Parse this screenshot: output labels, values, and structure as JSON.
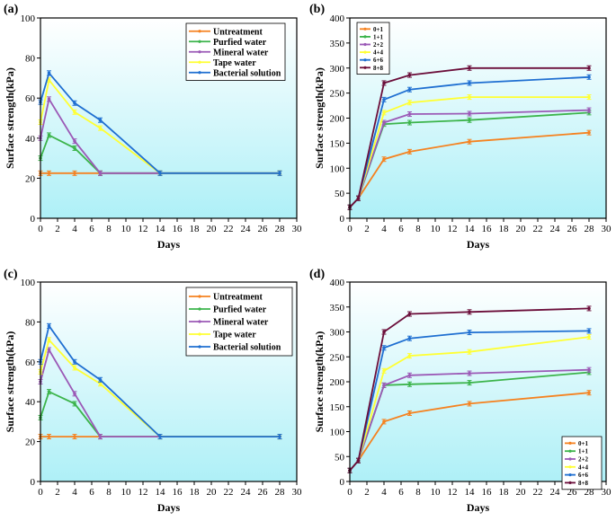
{
  "chart_data": [
    {
      "panel": "(a)",
      "type": "line",
      "xlabel": "Days",
      "ylabel": "Surface strength(kPa)",
      "xlim": [
        0,
        30
      ],
      "ylim": [
        0,
        100
      ],
      "xticks": [
        0,
        2,
        4,
        6,
        8,
        10,
        12,
        14,
        16,
        18,
        20,
        22,
        24,
        26,
        28,
        30
      ],
      "yticks": [
        0,
        20,
        40,
        60,
        80,
        100
      ],
      "background": "gradient-cyan",
      "legend_position": "top-right",
      "series": [
        {
          "name": "Untreatment",
          "color": "#f58220",
          "points": [
            [
              0,
              22.5
            ],
            [
              1,
              22.5
            ],
            [
              4,
              22.5
            ],
            [
              7,
              22.5
            ],
            [
              14,
              22.5
            ],
            [
              28,
              22.5
            ]
          ]
        },
        {
          "name": "Purfied water",
          "color": "#3cb44b",
          "points": [
            [
              0,
              30
            ],
            [
              1,
              41.5
            ],
            [
              4,
              35
            ],
            [
              7,
              22.5
            ],
            [
              14,
              22.5
            ],
            [
              28,
              22.5
            ]
          ]
        },
        {
          "name": "Mineral water",
          "color": "#9b59b6",
          "points": [
            [
              0,
              40
            ],
            [
              1,
              59.5
            ],
            [
              4,
              38.5
            ],
            [
              7,
              22.5
            ],
            [
              14,
              22.5
            ],
            [
              28,
              22.5
            ]
          ]
        },
        {
          "name": "Tape water",
          "color": "#ffff33",
          "points": [
            [
              0,
              48
            ],
            [
              1,
              69
            ],
            [
              4,
              53
            ],
            [
              7,
              45
            ],
            [
              14,
              22.5
            ],
            [
              28,
              22.5
            ]
          ]
        },
        {
          "name": "Bacterial solution",
          "color": "#1f6fd1",
          "points": [
            [
              0,
              58
            ],
            [
              1,
              72.5
            ],
            [
              4,
              57.5
            ],
            [
              7,
              49
            ],
            [
              14,
              22.5
            ],
            [
              28,
              22.5
            ]
          ]
        }
      ]
    },
    {
      "panel": "(b)",
      "type": "line",
      "xlabel": "Days",
      "ylabel": "Surface strength(kPa)",
      "xlim": [
        0,
        30
      ],
      "ylim": [
        0,
        400
      ],
      "xticks": [
        0,
        2,
        4,
        6,
        8,
        10,
        12,
        14,
        16,
        18,
        20,
        22,
        24,
        26,
        28,
        30
      ],
      "yticks": [
        0,
        50,
        100,
        150,
        200,
        250,
        300,
        350,
        400
      ],
      "background": "gradient-cyan",
      "legend_position": "top-left",
      "series": [
        {
          "name": "0+1",
          "color": "#f58220",
          "points": [
            [
              0,
              22
            ],
            [
              1,
              40
            ],
            [
              4,
              118
            ],
            [
              7,
              133
            ],
            [
              14,
              153
            ],
            [
              28,
              171
            ]
          ]
        },
        {
          "name": "1+1",
          "color": "#3cb44b",
          "points": [
            [
              0,
              22
            ],
            [
              1,
              40
            ],
            [
              4,
              188
            ],
            [
              7,
              191
            ],
            [
              14,
              196
            ],
            [
              28,
              211
            ]
          ]
        },
        {
          "name": "2+2",
          "color": "#9b59b6",
          "points": [
            [
              0,
              22
            ],
            [
              1,
              40
            ],
            [
              4,
              191
            ],
            [
              7,
              208
            ],
            [
              14,
              209
            ],
            [
              28,
              216
            ]
          ]
        },
        {
          "name": "4+4",
          "color": "#ffff33",
          "points": [
            [
              0,
              22
            ],
            [
              1,
              40
            ],
            [
              4,
              211
            ],
            [
              7,
              231
            ],
            [
              14,
              242
            ],
            [
              28,
              242
            ]
          ]
        },
        {
          "name": "6+6",
          "color": "#1f6fd1",
          "points": [
            [
              0,
              22
            ],
            [
              1,
              40
            ],
            [
              4,
              237
            ],
            [
              7,
              257
            ],
            [
              14,
              270
            ],
            [
              28,
              282
            ]
          ]
        },
        {
          "name": "8+8",
          "color": "#6b0e3a",
          "points": [
            [
              0,
              22
            ],
            [
              1,
              40
            ],
            [
              4,
              270
            ],
            [
              7,
              286
            ],
            [
              14,
              300
            ],
            [
              28,
              300
            ]
          ]
        }
      ]
    },
    {
      "panel": "(c)",
      "type": "line",
      "xlabel": "Days",
      "ylabel": "Surface strength(kPa)",
      "xlim": [
        0,
        30
      ],
      "ylim": [
        0,
        100
      ],
      "xticks": [
        0,
        2,
        4,
        6,
        8,
        10,
        12,
        14,
        16,
        18,
        20,
        22,
        24,
        26,
        28,
        30
      ],
      "yticks": [
        0,
        20,
        40,
        60,
        80,
        100
      ],
      "background": "gradient-cyan",
      "legend_position": "top-right",
      "series": [
        {
          "name": "Untreatment",
          "color": "#f58220",
          "points": [
            [
              0,
              22.5
            ],
            [
              1,
              22.5
            ],
            [
              4,
              22.5
            ],
            [
              7,
              22.5
            ],
            [
              14,
              22.5
            ],
            [
              28,
              22.5
            ]
          ]
        },
        {
          "name": "Purfied water",
          "color": "#3cb44b",
          "points": [
            [
              0,
              32
            ],
            [
              1,
              45
            ],
            [
              4,
              39
            ],
            [
              7,
              22.5
            ],
            [
              14,
              22.5
            ],
            [
              28,
              22.5
            ]
          ]
        },
        {
          "name": "Mineral water",
          "color": "#9b59b6",
          "points": [
            [
              0,
              50
            ],
            [
              1,
              66
            ],
            [
              4,
              44
            ],
            [
              7,
              22.5
            ],
            [
              14,
              22.5
            ],
            [
              28,
              22.5
            ]
          ]
        },
        {
          "name": "Tape water",
          "color": "#ffff33",
          "points": [
            [
              0,
              55
            ],
            [
              1,
              71
            ],
            [
              4,
              57
            ],
            [
              7,
              49
            ],
            [
              14,
              22.5
            ],
            [
              28,
              22.5
            ]
          ]
        },
        {
          "name": "Bacterial solution",
          "color": "#1f6fd1",
          "points": [
            [
              0,
              60
            ],
            [
              1,
              78
            ],
            [
              4,
              60
            ],
            [
              7,
              51
            ],
            [
              14,
              22.5
            ],
            [
              28,
              22.5
            ]
          ]
        }
      ]
    },
    {
      "panel": "(d)",
      "type": "line",
      "xlabel": "Days",
      "ylabel": "Surface strength(kPa)",
      "xlim": [
        0,
        30
      ],
      "ylim": [
        0,
        400
      ],
      "xticks": [
        0,
        2,
        4,
        6,
        8,
        10,
        12,
        14,
        16,
        18,
        20,
        22,
        24,
        26,
        28,
        30
      ],
      "yticks": [
        0,
        50,
        100,
        150,
        200,
        250,
        300,
        350,
        400
      ],
      "background": "gradient-cyan",
      "legend_position": "bottom-right",
      "series": [
        {
          "name": "0+1",
          "color": "#f58220",
          "points": [
            [
              0,
              22
            ],
            [
              1,
              42
            ],
            [
              4,
              120
            ],
            [
              7,
              137
            ],
            [
              14,
              156
            ],
            [
              28,
              178
            ]
          ]
        },
        {
          "name": "1+1",
          "color": "#3cb44b",
          "points": [
            [
              0,
              22
            ],
            [
              1,
              42
            ],
            [
              4,
              193
            ],
            [
              7,
              195
            ],
            [
              14,
              198
            ],
            [
              28,
              219
            ]
          ]
        },
        {
          "name": "2+2",
          "color": "#9b59b6",
          "points": [
            [
              0,
              22
            ],
            [
              1,
              42
            ],
            [
              4,
              193
            ],
            [
              7,
              213
            ],
            [
              14,
              217
            ],
            [
              28,
              224
            ]
          ]
        },
        {
          "name": "4+4",
          "color": "#ffff33",
          "points": [
            [
              0,
              22
            ],
            [
              1,
              42
            ],
            [
              4,
              222
            ],
            [
              7,
              252
            ],
            [
              14,
              260
            ],
            [
              28,
              290
            ]
          ]
        },
        {
          "name": "6+6",
          "color": "#1f6fd1",
          "points": [
            [
              0,
              22
            ],
            [
              1,
              42
            ],
            [
              4,
              268
            ],
            [
              7,
              287
            ],
            [
              14,
              299
            ],
            [
              28,
              302
            ]
          ]
        },
        {
          "name": "8+8",
          "color": "#6b0e3a",
          "points": [
            [
              0,
              22
            ],
            [
              1,
              42
            ],
            [
              4,
              300
            ],
            [
              7,
              336
            ],
            [
              14,
              340
            ],
            [
              28,
              347
            ]
          ]
        }
      ]
    }
  ]
}
